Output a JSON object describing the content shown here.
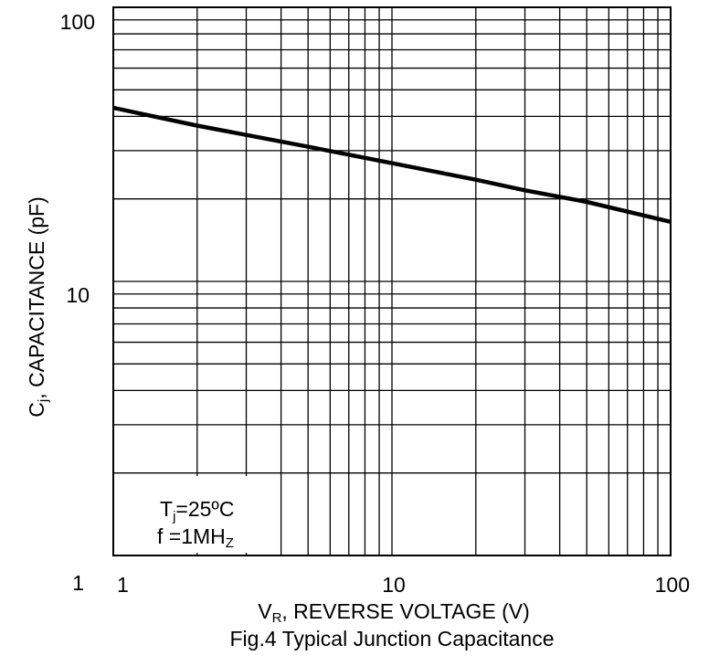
{
  "chart_data": {
    "type": "line",
    "title": "Fig.4 Typical Junction Capacitance",
    "xlabel": {
      "main": "V",
      "sub": "R",
      "rest": ", REVERSE VOLTAGE (V)"
    },
    "ylabel": {
      "main": "C",
      "sub": "j",
      "rest": ", CAPACITANCE (pF)"
    },
    "x_scale": "log",
    "y_scale": "log",
    "xlim": [
      1,
      100
    ],
    "ylim": [
      1,
      100
    ],
    "grid": true,
    "x_ticks": [
      "1",
      "10",
      "100"
    ],
    "y_ticks": [
      "100",
      "10",
      "1"
    ],
    "annotation": {
      "line1": {
        "main": "T",
        "sub": "j",
        "rest": "=25ºC"
      },
      "line2": {
        "main": "f =1MH",
        "sub": "Z",
        "rest": ""
      }
    },
    "series": [
      {
        "x": [
          1,
          2,
          5,
          10,
          20,
          30,
          50,
          100
        ],
        "y": [
          43,
          37,
          31,
          27,
          23.5,
          21.5,
          19.5,
          16.5
        ]
      }
    ]
  }
}
